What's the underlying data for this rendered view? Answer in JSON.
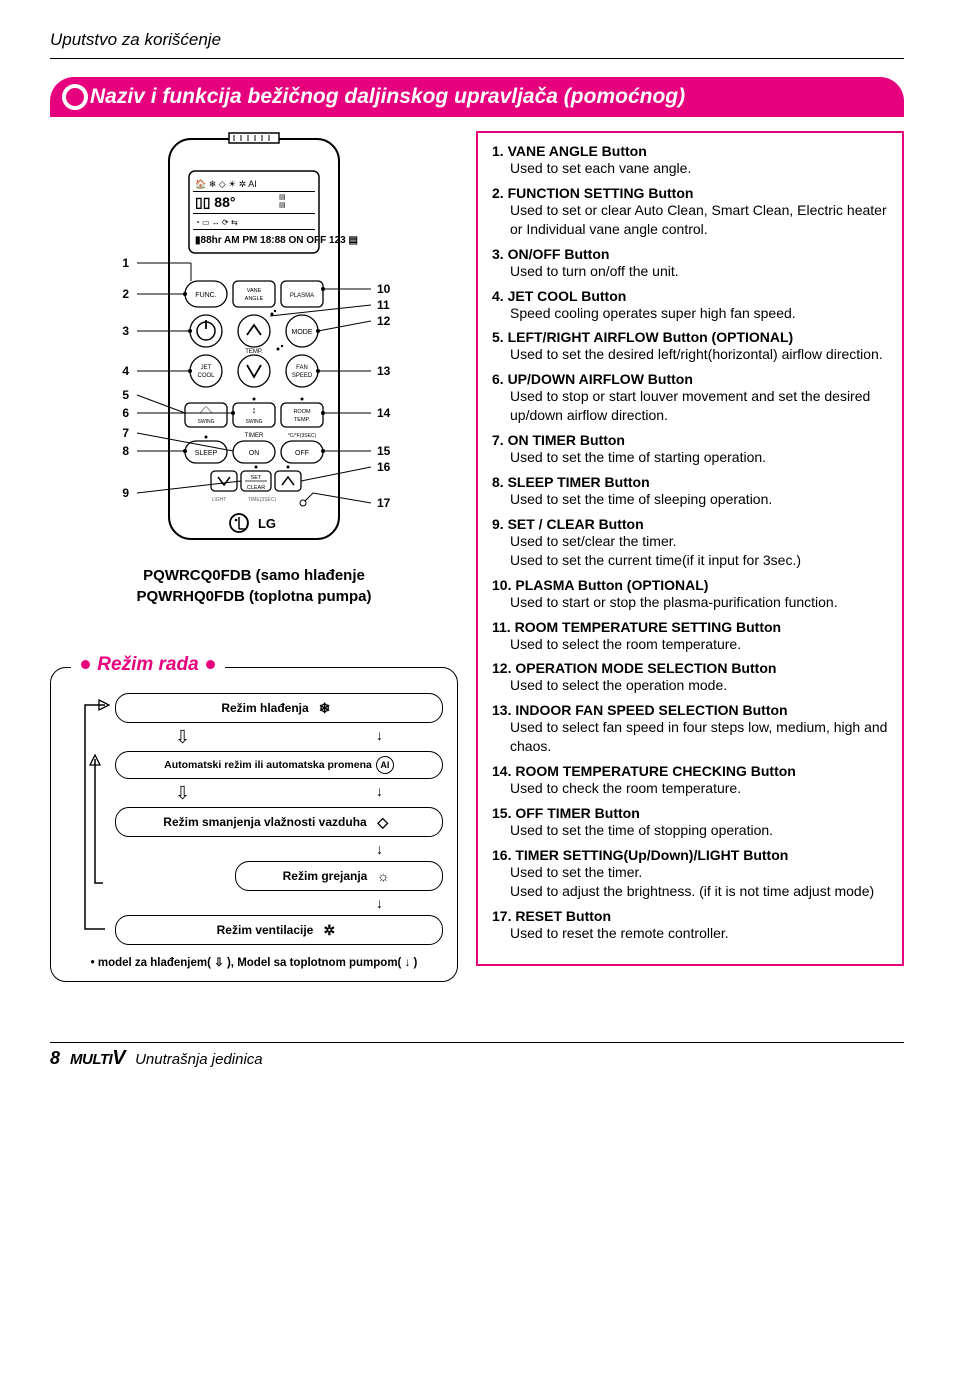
{
  "breadcrumb": "Uputstvo za korišćenje",
  "title": "Naziv i funkcija bežičnog daljinskog upravljača (pomoćnog)",
  "model_caption_1": "PQWRCQ0FDB (samo hlađenje",
  "model_caption_2": "PQWRHQ0FDB (toplotna pumpa)",
  "mode_box": {
    "title": "Režim rada",
    "rows": [
      {
        "label": "Režim hlađenja",
        "icon": "❄"
      },
      {
        "label": "Automatski režim ili automatska promena",
        "icon": "AI"
      },
      {
        "label": "Režim smanjenja vlažnosti vazduha",
        "icon": "◇"
      },
      {
        "label": "Režim grejanja",
        "icon": "☼"
      },
      {
        "label": "Režim ventilacije",
        "icon": "✲"
      }
    ],
    "footer": "• model za hlađenjem( ⇩ ), Model sa toplotnom pumpom( ↓ )"
  },
  "remote": {
    "numbers_left": [
      "1",
      "2",
      "3",
      "4",
      "5",
      "6",
      "7",
      "8",
      "9"
    ],
    "numbers_right": [
      "10",
      "11",
      "12",
      "13",
      "14",
      "15",
      "16",
      "17"
    ],
    "btn_func": "FUNC.",
    "btn_vane": "VANE\nANGLE",
    "btn_plasma": "PLASMA",
    "btn_mode": "MODE",
    "btn_jet": "JET\nCOOL",
    "btn_fan": "FAN\nSPEED",
    "btn_swing_l": "SWING",
    "btn_swing_r": "SWING",
    "btn_room": "ROOM\nTEMP.",
    "btn_sleep": "SLEEP",
    "btn_on": "ON",
    "btn_off": "OFF",
    "btn_set": "SET\nCLEAR",
    "lbl_temp": "TEMP.",
    "lbl_timer": "TIMER",
    "lbl_cfsec": "°C/°F(3SEC)",
    "lbl_light": "LIGHT",
    "lbl_time": "TIME(3SEC)",
    "brand": "LG"
  },
  "features": [
    {
      "num": "1.",
      "title": "VANE ANGLE Button",
      "desc": "Used to set each vane angle."
    },
    {
      "num": "2.",
      "title": "FUNCTION SETTING Button",
      "desc": "Used to set or clear Auto Clean, Smart Clean, Electric heater or Individual vane angle control."
    },
    {
      "num": "3.",
      "title": " ON/OFF Button",
      "desc": "Used to turn on/off the unit."
    },
    {
      "num": "4.",
      "title": "JET COOL Button",
      "desc": "Speed cooling operates super high fan speed."
    },
    {
      "num": "5.",
      "title": "LEFT/RIGHT AIRFLOW Button (OPTIONAL)",
      "desc": "Used to set the desired left/right(horizontal) airflow direction."
    },
    {
      "num": "6.",
      "title": "UP/DOWN AIRFLOW Button",
      "desc": "Used to stop or start louver movement and set the desired up/down airflow direction."
    },
    {
      "num": "7.",
      "title": "ON TIMER Button",
      "desc": "Used to set the time of starting operation."
    },
    {
      "num": "8.",
      "title": "SLEEP TIMER Button",
      "desc": "Used to set the time of sleeping operation."
    },
    {
      "num": "9.",
      "title": "SET / CLEAR Button",
      "desc": "Used to set/clear the timer.\nUsed to set the current time(if it input for 3sec.)"
    },
    {
      "num": "10.",
      "title": "PLASMA Button (OPTIONAL)",
      "desc": "Used to start or stop the plasma-purification function."
    },
    {
      "num": "11.",
      "title": "ROOM TEMPERATURE SETTING Button",
      "desc": "Used to select the room temperature."
    },
    {
      "num": "12.",
      "title": "OPERATION MODE SELECTION Button",
      "desc": "Used to select the operation mode."
    },
    {
      "num": "13.",
      "title": "INDOOR FAN SPEED SELECTION Button",
      "desc": "Used to select fan speed in four steps low, medium, high and chaos."
    },
    {
      "num": "14.",
      "title": "ROOM TEMPERATURE CHECKING Button",
      "desc": "Used to check the room temperature."
    },
    {
      "num": "15.",
      "title": "OFF TIMER Button",
      "desc": "Used to set the time of stopping operation."
    },
    {
      "num": "16.",
      "title": "TIMER SETTING(Up/Down)/LIGHT Button",
      "desc": "Used to set the timer.\nUsed to adjust the brightness. (if it is not time adjust mode)"
    },
    {
      "num": "17.",
      "title": "RESET Button",
      "desc": "Used to reset the remote controller."
    }
  ],
  "footer": {
    "page": "8",
    "brand": "MULTI",
    "brand_v": "V",
    "text": "Unutrašnja jedinica"
  },
  "colors": {
    "pink": "#e6007e",
    "black": "#000000",
    "white": "#ffffff"
  }
}
